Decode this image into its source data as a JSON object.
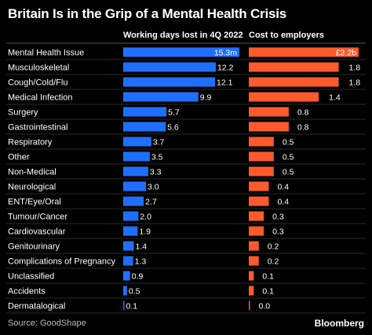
{
  "title": "Britain Is in the Grip of a Mental Health Crisis",
  "source": "Source: GoodShape",
  "brand": "Bloomberg",
  "colors": {
    "background": "#000000",
    "days_bar": "#1f6fff",
    "cost_bar": "#ff5a2b",
    "divider": "#555555",
    "row_line": "#2a2a2a"
  },
  "chart_data": {
    "type": "bar",
    "orientation": "horizontal",
    "title": "Britain Is in the Grip of a Mental Health Crisis",
    "categories": [
      "Mental Health Issue",
      "Musculoskeletal",
      "Cough/Cold/Flu",
      "Medical Infection",
      "Surgery",
      "Gastrointestinal",
      "Respiratory",
      "Other",
      "Non-Medical",
      "Neurological",
      "ENT/Eye/Oral",
      "Tumour/Cancer",
      "Cardiovascular",
      "Genitourinary",
      "Complications of Pregnancy",
      "Unclassified",
      "Accidents",
      "Dermatalogical"
    ],
    "series": [
      {
        "name": "Working days lost in 4Q 2022",
        "values": [
          15.3,
          12.2,
          12.1,
          9.9,
          5.7,
          5.6,
          3.7,
          3.5,
          3.3,
          3.0,
          2.7,
          2.0,
          1.9,
          1.4,
          1.3,
          0.9,
          0.5,
          0.1
        ],
        "labels": [
          "15.3m",
          "12.2",
          "12.1",
          "9.9",
          "5.7",
          "5.6",
          "3.7",
          "3.5",
          "3.3",
          "3.0",
          "2.7",
          "2.0",
          "1.9",
          "1.4",
          "1.3",
          "0.9",
          "0.5",
          "0.1"
        ]
      },
      {
        "name": "Cost to employers",
        "values": [
          2.2,
          1.8,
          1.8,
          1.4,
          0.8,
          0.8,
          0.5,
          0.5,
          0.5,
          0.4,
          0.4,
          0.3,
          0.3,
          0.2,
          0.2,
          0.1,
          0.1,
          0.0
        ],
        "labels": [
          "£2.2b",
          "1.8",
          "1.8",
          "1.4",
          "0.8",
          "0.8",
          "0.5",
          "0.5",
          "0.5",
          "0.4",
          "0.4",
          "0.3",
          "0.3",
          "0.2",
          "0.2",
          "0.1",
          "0.1",
          "0.0"
        ]
      }
    ],
    "legend": "none",
    "grid": false
  }
}
